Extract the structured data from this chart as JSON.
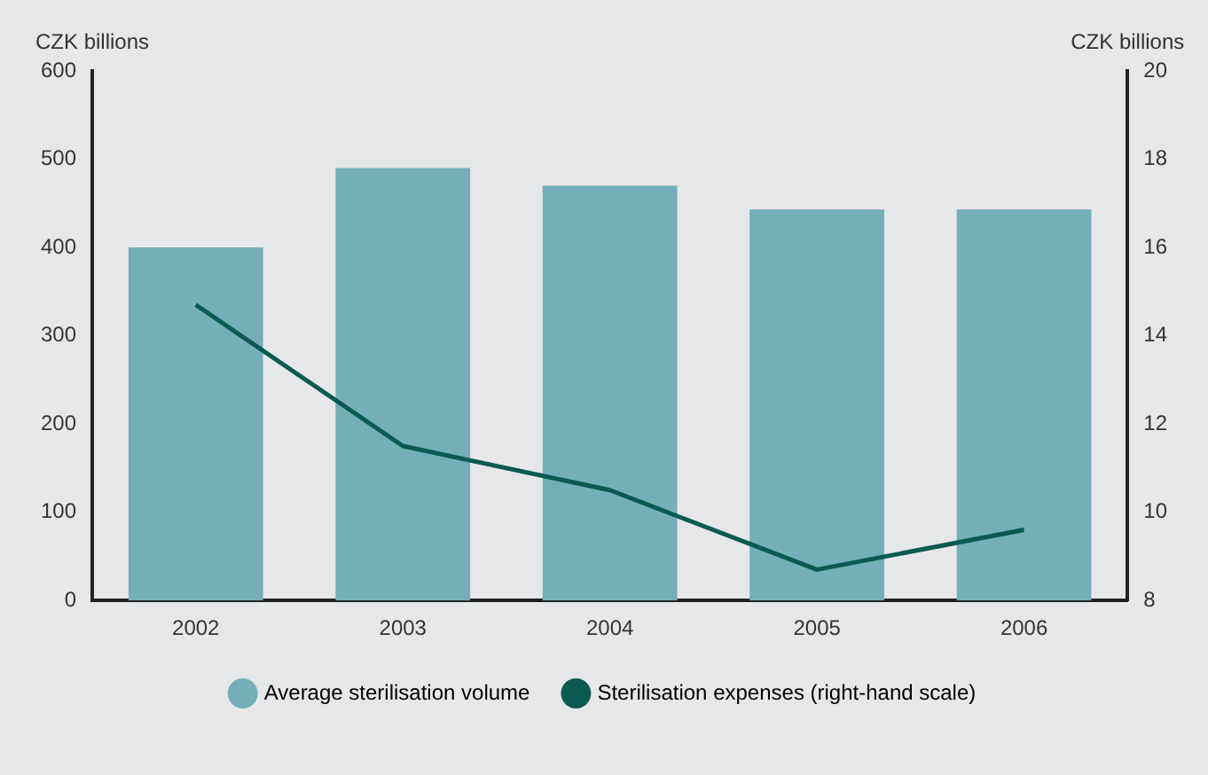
{
  "chart_data": {
    "type": "bar",
    "ylabel": "CZK billions",
    "y2label": "CZK billions",
    "categories": [
      "2002",
      "2003",
      "2004",
      "2005",
      "2006"
    ],
    "series": [
      {
        "name": "Average sterilisation volume",
        "color": "#74afb7",
        "values": [
          400,
          490,
          470,
          443,
          443
        ]
      },
      {
        "name": "Sterilisation expenses (right-hand scale)",
        "type": "line",
        "axis": "y2",
        "color": "#0a5a4f",
        "values": [
          14.7,
          11.5,
          10.5,
          8.7,
          9.6
        ]
      }
    ],
    "ylim": [
      0,
      600
    ],
    "yticks": [
      0,
      100,
      200,
      300,
      400,
      500,
      600
    ],
    "y2lim": [
      8,
      20
    ],
    "y2ticks": [
      8,
      10,
      12,
      14,
      16,
      18,
      20
    ],
    "grid": false,
    "legend": "bottom",
    "marker": "none",
    "line_style": "solid"
  }
}
